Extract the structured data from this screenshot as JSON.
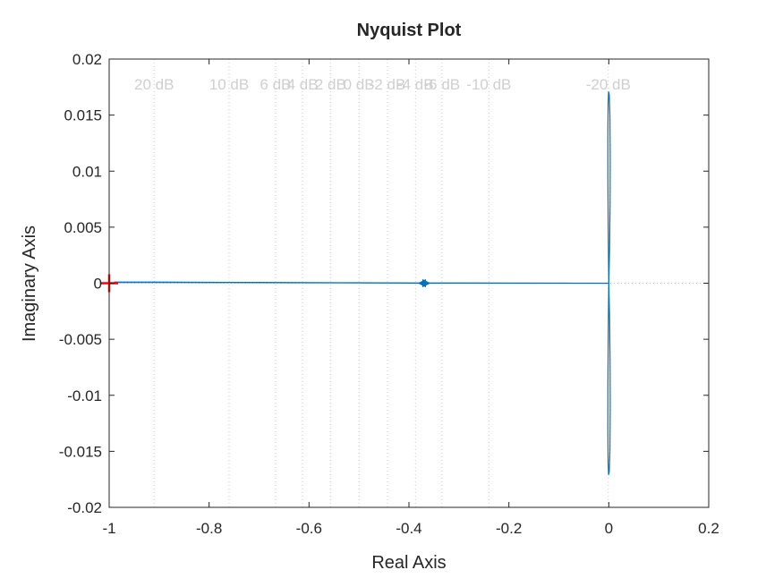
{
  "chart_data": {
    "type": "line",
    "title": "Nyquist Plot",
    "xlabel": "Real Axis",
    "ylabel": "Imaginary Axis",
    "xlim": [
      -1,
      0.2
    ],
    "ylim": [
      -0.02,
      0.02
    ],
    "grid": "dotted (M-circles)",
    "x_ticks": [
      {
        "value": -1,
        "label": "-1"
      },
      {
        "value": -0.8,
        "label": "-0.8"
      },
      {
        "value": -0.6,
        "label": "-0.6"
      },
      {
        "value": -0.4,
        "label": "-0.4"
      },
      {
        "value": -0.2,
        "label": "-0.2"
      },
      {
        "value": 0,
        "label": "0"
      },
      {
        "value": 0.2,
        "label": "0.2"
      }
    ],
    "y_ticks": [
      {
        "value": 0.02,
        "label": "0.02"
      },
      {
        "value": 0.015,
        "label": "0.015"
      },
      {
        "value": 0.01,
        "label": "0.01"
      },
      {
        "value": 0.005,
        "label": "0.005"
      },
      {
        "value": 0,
        "label": "0"
      },
      {
        "value": -0.005,
        "label": "-0.005"
      },
      {
        "value": -0.01,
        "label": "-0.01"
      },
      {
        "value": -0.015,
        "label": "-0.015"
      },
      {
        "value": -0.02,
        "label": "-0.02"
      }
    ],
    "db_labels": [
      {
        "text": "20 dB",
        "x": -0.91
      },
      {
        "text": "10 dB",
        "x": -0.76
      },
      {
        "text": "6 dB",
        "x": -0.667
      },
      {
        "text": "4 dB",
        "x": -0.613
      },
      {
        "text": "2 dB",
        "x": -0.557
      },
      {
        "text": "0 dB",
        "x": -0.5
      },
      {
        "text": "-2 dB",
        "x": -0.443
      },
      {
        "text": "-4 dB",
        "x": -0.387
      },
      {
        "text": "-6 dB",
        "x": -0.334
      },
      {
        "text": "-10 dB",
        "x": -0.24
      },
      {
        "text": "-20 dB",
        "x": -0.001
      }
    ],
    "series": [
      {
        "color": "#0072BD",
        "points": [
          [
            -0.99,
            0.0001
          ],
          [
            -0.9,
            0.0001
          ],
          [
            -0.8,
            8e-05
          ],
          [
            -0.7,
            7e-05
          ],
          [
            -0.6,
            5e-05
          ],
          [
            -0.5,
            4e-05
          ],
          [
            -0.42,
            2e-05
          ],
          [
            -0.375,
            0.0
          ],
          [
            -0.3,
            1e-05
          ],
          [
            -0.2,
            0.0
          ],
          [
            -0.1,
            0.0
          ],
          [
            -0.02,
            0.0
          ],
          [
            0.0,
            0.0
          ],
          [
            0.0015,
            0.003
          ],
          [
            0.0025,
            0.007
          ],
          [
            0.0028,
            0.011
          ],
          [
            0.0022,
            0.015
          ],
          [
            0.0009,
            0.0168
          ],
          [
            -0.0004,
            0.0171
          ],
          [
            -0.0014,
            0.016
          ],
          [
            -0.0019,
            0.013
          ],
          [
            -0.0018,
            0.009
          ],
          [
            -0.0012,
            0.005
          ],
          [
            -0.0005,
            0.0018
          ],
          [
            0.0,
            0.0
          ],
          [
            0.0015,
            -0.003
          ],
          [
            0.0025,
            -0.007
          ],
          [
            0.0028,
            -0.011
          ],
          [
            0.0022,
            -0.015
          ],
          [
            0.0009,
            -0.0168
          ],
          [
            -0.0004,
            -0.0171
          ],
          [
            -0.0014,
            -0.016
          ],
          [
            -0.0019,
            -0.013
          ],
          [
            -0.0018,
            -0.009
          ],
          [
            -0.0012,
            -0.005
          ],
          [
            -0.0005,
            -0.0018
          ],
          [
            0.0,
            0.0
          ]
        ]
      }
    ],
    "arrows": [
      {
        "x": -0.372,
        "y": 0.0,
        "direction": "left"
      },
      {
        "x": -0.367,
        "y": 0.0,
        "direction": "right"
      }
    ],
    "critical_point": {
      "x": -1,
      "y": 0,
      "color": "#FF0000"
    }
  }
}
